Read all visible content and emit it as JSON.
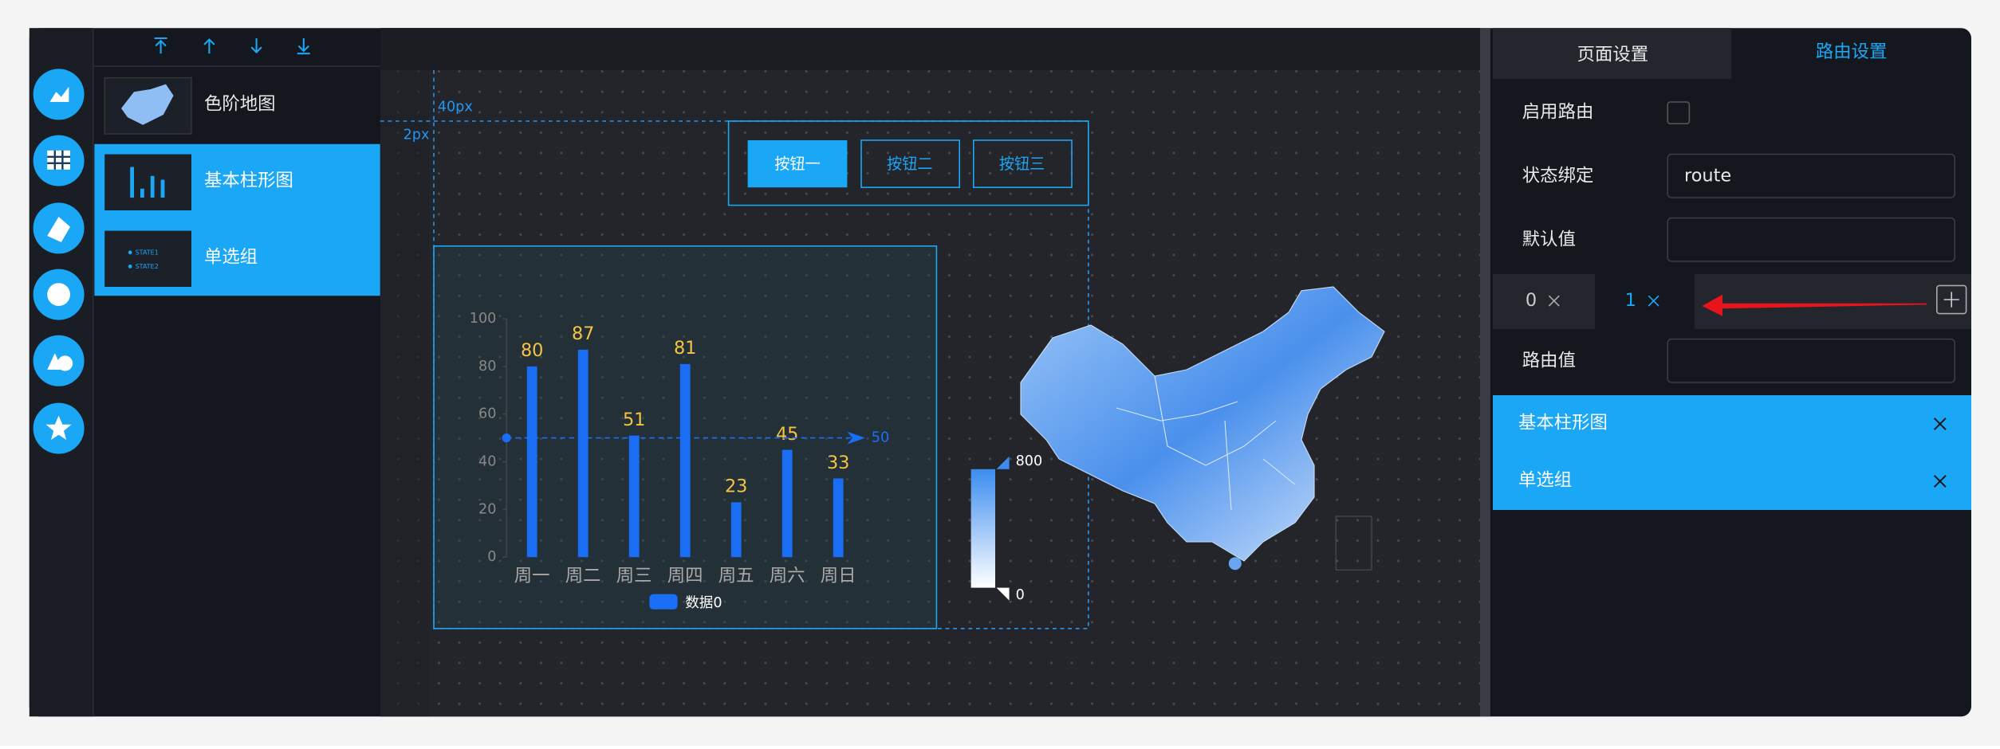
{
  "layers": [
    {
      "name": "色阶地图"
    },
    {
      "name": "基本柱形图"
    },
    {
      "name": "单选组"
    }
  ],
  "thumbnail_text": [
    "STATE1",
    "STATE2"
  ],
  "canvas": {
    "ruler_labels": [
      "40px",
      "2px"
    ],
    "buttons": [
      "按钮一",
      "按钮二",
      "按钮三"
    ],
    "bar_chart": {
      "type": "bar",
      "categories": [
        "周一",
        "周二",
        "周三",
        "周四",
        "周五",
        "周六",
        "周日"
      ],
      "series": [
        {
          "name": "数据0",
          "color": "#1a6ef5",
          "values": [
            80,
            87,
            51,
            81,
            23,
            45,
            33
          ]
        }
      ],
      "ylim": [
        0,
        100
      ],
      "yticks": [
        0,
        20,
        40,
        60,
        80,
        100
      ],
      "mark_line": 50
    },
    "visual_map": {
      "min": 0,
      "max": 800
    }
  },
  "panel": {
    "tabs": [
      "页面设置",
      "路由设置"
    ],
    "fields": [
      {
        "label": "启用路由"
      },
      {
        "label": "状态绑定",
        "value": "route"
      },
      {
        "label": "默认值"
      }
    ],
    "route_tabs": [
      "0",
      "1"
    ],
    "route_value_label": "路由值",
    "route_targets": [
      "基本柱形图",
      "单选组"
    ]
  }
}
